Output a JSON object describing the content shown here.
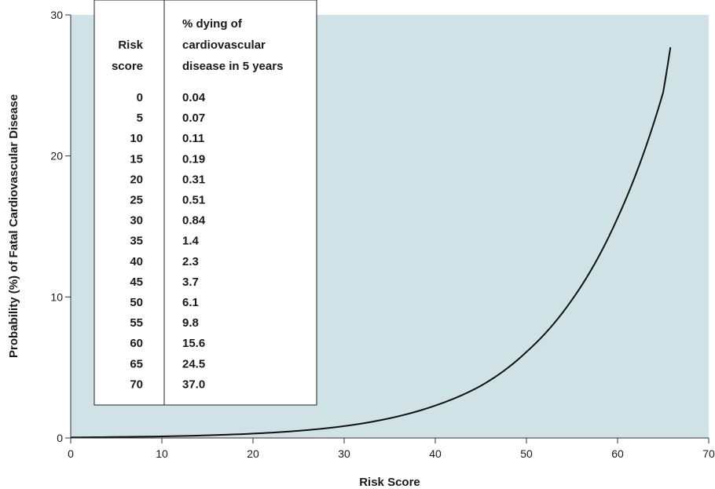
{
  "chart_data": {
    "type": "line",
    "xlabel": "Risk Score",
    "ylabel": "Probability (%) of Fatal Cardiovascular Disease",
    "xlim": [
      0,
      70
    ],
    "ylim": [
      0,
      30
    ],
    "xticks": [
      "0",
      "10",
      "20",
      "30",
      "40",
      "50",
      "60",
      "70"
    ],
    "yticks": [
      "0",
      "10",
      "20",
      "30"
    ],
    "background_color": "#cfe3e6",
    "line_color": "#111111",
    "grid": false,
    "series": [
      {
        "x": [
          0,
          5,
          10,
          15,
          20,
          25,
          30,
          35,
          40,
          45,
          50,
          55,
          60,
          65,
          65.8
        ],
        "y": [
          0.04,
          0.07,
          0.11,
          0.19,
          0.31,
          0.51,
          0.84,
          1.4,
          2.3,
          3.7,
          6.1,
          9.8,
          15.6,
          24.5,
          27.7
        ]
      }
    ],
    "inset_table": {
      "header_col1": [
        "Risk",
        "score"
      ],
      "header_col2": [
        "% dying of",
        "cardiovascular",
        "disease in 5 years"
      ],
      "rows": [
        [
          "0",
          "0.04"
        ],
        [
          "5",
          "0.07"
        ],
        [
          "10",
          "0.11"
        ],
        [
          "15",
          "0.19"
        ],
        [
          "20",
          "0.31"
        ],
        [
          "25",
          "0.51"
        ],
        [
          "30",
          "0.84"
        ],
        [
          "35",
          "1.4"
        ],
        [
          "40",
          "2.3"
        ],
        [
          "45",
          "3.7"
        ],
        [
          "50",
          "6.1"
        ],
        [
          "55",
          "9.8"
        ],
        [
          "60",
          "15.6"
        ],
        [
          "65",
          "24.5"
        ],
        [
          "70",
          "37.0"
        ]
      ]
    }
  }
}
